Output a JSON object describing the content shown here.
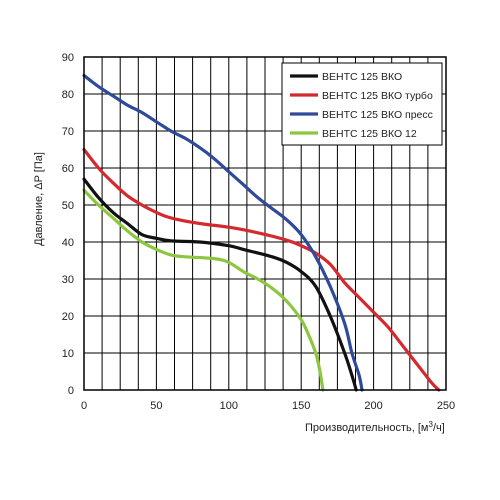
{
  "chart_data": {
    "type": "line",
    "title": "",
    "xlabel": "Производительность, [м",
    "xlabel_sup": "3",
    "xlabel_tail": "/ч]",
    "ylabel": "Давление, ΔP [Па]",
    "xlim": [
      0,
      250
    ],
    "ylim": [
      0,
      90
    ],
    "xticks": [
      0,
      50,
      100,
      150,
      200,
      250
    ],
    "yticks": [
      0,
      10,
      20,
      30,
      40,
      50,
      60,
      70,
      80,
      90
    ],
    "grid": true,
    "legend_position": "top-right",
    "series": [
      {
        "name": "ВЕНТС 125 ВКО",
        "color": "#111111",
        "points": [
          [
            0,
            57
          ],
          [
            10,
            52
          ],
          [
            20,
            48
          ],
          [
            30,
            45
          ],
          [
            40,
            42
          ],
          [
            50,
            41
          ],
          [
            60,
            40.3
          ],
          [
            80,
            40
          ],
          [
            100,
            39
          ],
          [
            110,
            38
          ],
          [
            130,
            36
          ],
          [
            140,
            34.5
          ],
          [
            150,
            32
          ],
          [
            160,
            28
          ],
          [
            170,
            20
          ],
          [
            180,
            10
          ],
          [
            185,
            4
          ],
          [
            188,
            0
          ]
        ]
      },
      {
        "name": "ВЕНТС 125 ВКО турбо",
        "color": "#d42a2f",
        "points": [
          [
            0,
            65
          ],
          [
            10,
            60
          ],
          [
            20,
            56
          ],
          [
            30,
            52.5
          ],
          [
            40,
            50
          ],
          [
            50,
            48
          ],
          [
            60,
            46.5
          ],
          [
            80,
            45
          ],
          [
            100,
            44
          ],
          [
            120,
            42.5
          ],
          [
            140,
            40.5
          ],
          [
            150,
            39
          ],
          [
            160,
            37
          ],
          [
            170,
            34
          ],
          [
            180,
            29
          ],
          [
            190,
            25
          ],
          [
            200,
            21
          ],
          [
            210,
            17
          ],
          [
            220,
            12
          ],
          [
            230,
            7
          ],
          [
            240,
            2
          ],
          [
            245,
            0
          ]
        ]
      },
      {
        "name": "ВЕНТС 125 ВКО пресс",
        "color": "#2f4a9b",
        "points": [
          [
            0,
            85
          ],
          [
            10,
            82
          ],
          [
            20,
            79.5
          ],
          [
            30,
            77
          ],
          [
            40,
            75
          ],
          [
            50,
            72.5
          ],
          [
            60,
            70
          ],
          [
            70,
            68
          ],
          [
            80,
            65.5
          ],
          [
            90,
            62.5
          ],
          [
            100,
            59
          ],
          [
            110,
            55.5
          ],
          [
            120,
            52
          ],
          [
            130,
            49
          ],
          [
            140,
            46
          ],
          [
            150,
            42
          ],
          [
            160,
            36
          ],
          [
            170,
            28
          ],
          [
            180,
            18
          ],
          [
            185,
            10
          ],
          [
            190,
            4
          ],
          [
            192,
            0
          ]
        ]
      },
      {
        "name": "ВЕНТС 125 ВКО 12",
        "color": "#8dc63f",
        "points": [
          [
            0,
            54
          ],
          [
            10,
            50
          ],
          [
            20,
            46.5
          ],
          [
            30,
            43
          ],
          [
            40,
            40
          ],
          [
            50,
            38
          ],
          [
            60,
            36.5
          ],
          [
            70,
            36
          ],
          [
            90,
            35.5
          ],
          [
            100,
            34.5
          ],
          [
            110,
            32
          ],
          [
            120,
            30
          ],
          [
            130,
            27.5
          ],
          [
            140,
            24
          ],
          [
            150,
            19
          ],
          [
            155,
            15
          ],
          [
            160,
            10
          ],
          [
            163,
            5
          ],
          [
            165,
            0
          ]
        ]
      }
    ]
  }
}
